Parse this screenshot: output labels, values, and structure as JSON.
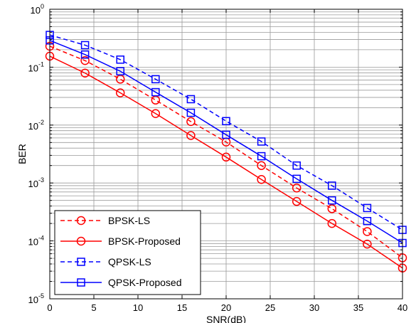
{
  "chart_data": {
    "type": "line",
    "xlabel": "SNR(dB)",
    "ylabel": "BER",
    "xlim": [
      0,
      40
    ],
    "ylim": [
      1e-05,
      1
    ],
    "y_scale": "log",
    "grid": true,
    "legend_position": "bottom-left",
    "x_ticks": [
      0,
      5,
      10,
      15,
      20,
      25,
      30,
      35,
      40
    ],
    "x_tick_labels": [
      "0",
      "5",
      "10",
      "15",
      "20",
      "25",
      "30",
      "35",
      "40"
    ],
    "y_ticks": [
      {
        "value": 1,
        "base": "10",
        "exp": "0"
      },
      {
        "value": 0.1,
        "base": "10",
        "exp": "-1"
      },
      {
        "value": 0.01,
        "base": "10",
        "exp": "-2"
      },
      {
        "value": 0.001,
        "base": "10",
        "exp": "-3"
      },
      {
        "value": 0.0001,
        "base": "10",
        "exp": "-4"
      },
      {
        "value": 1e-05,
        "base": "10",
        "exp": "-5"
      }
    ],
    "x": [
      0,
      4,
      8,
      12,
      16,
      20,
      24,
      28,
      32,
      36,
      40
    ],
    "series": [
      {
        "name": "BPSK-LS",
        "color": "#ff0000",
        "dash": "dashed",
        "marker": "circle",
        "values": [
          0.23,
          0.13,
          0.062,
          0.027,
          0.0115,
          0.0051,
          0.002,
          0.00082,
          0.00036,
          0.000145,
          5.1e-05
        ]
      },
      {
        "name": "BPSK-Proposed",
        "color": "#ff0000",
        "dash": "solid",
        "marker": "circle",
        "values": [
          0.155,
          0.079,
          0.036,
          0.0158,
          0.0066,
          0.0028,
          0.00115,
          0.00048,
          0.0002,
          8.8e-05,
          3.4e-05
        ]
      },
      {
        "name": "QPSK-LS",
        "color": "#0000ff",
        "dash": "dashed",
        "marker": "square",
        "values": [
          0.36,
          0.24,
          0.135,
          0.062,
          0.028,
          0.0117,
          0.0052,
          0.002,
          0.0009,
          0.00037,
          0.000155
        ]
      },
      {
        "name": "QPSK-Proposed",
        "color": "#0000ff",
        "dash": "solid",
        "marker": "square",
        "values": [
          0.29,
          0.165,
          0.085,
          0.037,
          0.0163,
          0.0068,
          0.0029,
          0.00118,
          0.0005,
          0.00022,
          9.2e-05
        ]
      }
    ]
  }
}
